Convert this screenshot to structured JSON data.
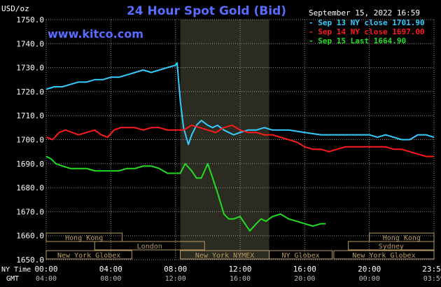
{
  "header": {
    "title": "24 Hour Spot Gold (Bid)",
    "unit_label": "USD/oz",
    "timestamp": "September 15, 2022 16:59",
    "website": "www.kitco.com"
  },
  "colors": {
    "title": "#5a6cff",
    "series_1": "#33ccff",
    "series_2": "#ff1a1a",
    "series_3": "#22dd22",
    "market_box": "#b89b63",
    "grid": "#ffffff",
    "shade": "#2b2b22"
  },
  "chart_data": {
    "type": "line",
    "ylim": [
      1650,
      1750
    ],
    "y_ticks": [
      "1750.0",
      "1740.0",
      "1730.0",
      "1720.0",
      "1710.0",
      "1700.0",
      "1690.0",
      "1680.0",
      "1670.0",
      "1660.0",
      "1650.0"
    ],
    "x_ticks_ny": [
      "00:00",
      "04:00",
      "08:00",
      "12:00",
      "16:00",
      "20:00",
      "23:59"
    ],
    "x_ticks_gmt": [
      "04:00",
      "08:00",
      "12:00",
      "16:00",
      "20:00",
      "00:00",
      "03:59"
    ],
    "x_axis_labels": {
      "ny": "NY Time",
      "gmt": "GMT"
    },
    "series": [
      {
        "name": "Sep 13 NY close 1701.90",
        "color": "#33ccff",
        "x": [
          0,
          0.5,
          1,
          1.5,
          2,
          2.5,
          3,
          3.5,
          4,
          4.5,
          5,
          5.5,
          6,
          6.5,
          7,
          7.5,
          8,
          8.1,
          8.3,
          8.5,
          8.8,
          9,
          9.3,
          9.6,
          10,
          10.3,
          10.6,
          11,
          11.3,
          11.6,
          12,
          12.5,
          13,
          13.5,
          14,
          14.5,
          15,
          16,
          17,
          18,
          19,
          20,
          20.5,
          21,
          21.5,
          22,
          22.5,
          23,
          23.5,
          24
        ],
        "values": [
          1721,
          1722,
          1722,
          1723,
          1724,
          1724,
          1725,
          1725,
          1726,
          1726,
          1727,
          1728,
          1729,
          1728,
          1729,
          1730,
          1731,
          1732,
          1716,
          1705,
          1698,
          1702,
          1706,
          1708,
          1706,
          1705,
          1706,
          1704,
          1703,
          1702,
          1703,
          1704,
          1704,
          1705,
          1704,
          1704,
          1704,
          1703,
          1702,
          1702,
          1702,
          1702,
          1701,
          1702,
          1701,
          1700,
          1700,
          1702,
          1702,
          1701
        ]
      },
      {
        "name": "Sep 14 NY close 1697.00",
        "color": "#ff1a1a",
        "x": [
          0,
          0.4,
          0.8,
          1.2,
          1.6,
          2,
          2.5,
          3,
          3.4,
          3.8,
          4.2,
          4.6,
          5,
          5.5,
          6,
          6.5,
          7,
          7.5,
          8,
          8.5,
          9,
          9.5,
          10,
          10.5,
          11,
          11.5,
          12,
          12.5,
          13,
          13.5,
          14,
          14.5,
          15,
          15.5,
          16,
          16.5,
          17,
          17.5,
          18,
          18.5,
          19,
          19.5,
          20,
          20.5,
          21,
          21.5,
          22,
          22.5,
          23,
          23.5,
          24
        ],
        "values": [
          1701,
          1700,
          1703,
          1704,
          1703,
          1702,
          1703,
          1704,
          1702,
          1701,
          1704,
          1705,
          1705,
          1705,
          1704,
          1705,
          1705,
          1704,
          1704,
          1704,
          1706,
          1705,
          1704,
          1703,
          1705,
          1706,
          1704,
          1703,
          1703,
          1702,
          1702,
          1701,
          1700,
          1699,
          1697,
          1696,
          1696,
          1695,
          1696,
          1697,
          1697,
          1697,
          1697,
          1697,
          1697,
          1696,
          1696,
          1695,
          1694,
          1693,
          1693
        ]
      },
      {
        "name": "Sep 15 Last 1664.90",
        "color": "#22dd22",
        "x": [
          0,
          0.3,
          0.6,
          1,
          1.5,
          2,
          2.5,
          3,
          3.5,
          4,
          4.5,
          5,
          5.5,
          6,
          6.5,
          7,
          7.5,
          8,
          8.3,
          8.6,
          9,
          9.3,
          9.6,
          10,
          10.3,
          10.6,
          11,
          11.3,
          11.6,
          12,
          12.3,
          12.6,
          13,
          13.3,
          13.6,
          14,
          14.5,
          15,
          15.5,
          16,
          16.5,
          17,
          17.3
        ],
        "values": [
          1693,
          1692,
          1690,
          1689,
          1688,
          1688,
          1688,
          1687,
          1687,
          1687,
          1687,
          1688,
          1688,
          1689,
          1689,
          1688,
          1686,
          1686,
          1686,
          1690,
          1687,
          1684,
          1684,
          1690,
          1684,
          1678,
          1669,
          1667,
          1667,
          1668,
          1665,
          1662,
          1665,
          1667,
          1666,
          1668,
          1669,
          1667,
          1666,
          1665,
          1664,
          1665,
          1665
        ]
      }
    ],
    "markets": [
      {
        "label": "Hong Kong",
        "start": 0,
        "end": 4.7,
        "row": 0
      },
      {
        "label": "London",
        "start": 3.0,
        "end": 9.8,
        "row": 1
      },
      {
        "label": "New York Globex",
        "start": 0,
        "end": 5.3,
        "row": 2
      },
      {
        "label": "New York NYMEX",
        "start": 8.3,
        "end": 13.8,
        "row": 2
      },
      {
        "label": "NY Globex",
        "start": 13.8,
        "end": 17.7,
        "row": 2
      },
      {
        "label": "Hong Kong",
        "start": 20.0,
        "end": 24,
        "row": 0
      },
      {
        "label": "Sydney",
        "start": 18.7,
        "end": 24,
        "row": 1
      },
      {
        "label": "New York Globex",
        "start": 17.8,
        "end": 24,
        "row": 2
      }
    ]
  }
}
